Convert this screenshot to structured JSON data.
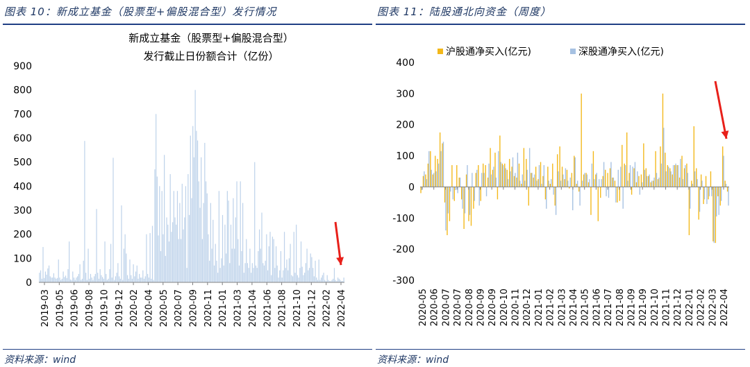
{
  "left_panel": {
    "figure_title": "图表 10：新成立基金（股票型+偏股混合型）发行情况",
    "source": "资料来源：wind"
  },
  "right_panel": {
    "figure_title": "图表 11：陆股通北向资金（周度）",
    "source": "资料来源：wind"
  },
  "colors": {
    "title_navy": "#1f3864",
    "rule_navy": "#1f3f84",
    "fund_bar": "#bdd2ea",
    "shanghai": "#f3b81a",
    "shenzhen": "#a6c1e2",
    "annotation_arrow": "#e8201a"
  },
  "chart_data": [
    {
      "type": "bar",
      "title": "新成立基金（股票型+偏股混合型）",
      "subtitle": "发行截止日份额合计（亿份）",
      "ylim": [
        0,
        900
      ],
      "yticks": [
        0,
        100,
        200,
        300,
        400,
        500,
        600,
        700,
        800,
        900
      ],
      "x_tick_labels": [
        "2019-03",
        "2019-05",
        "2019-06",
        "2019-08",
        "2019-10",
        "2019-12",
        "2020-02",
        "2020-04",
        "2020-05",
        "2020-07",
        "2020-09",
        "2020-11",
        "2021-01",
        "2021-03",
        "2021-04",
        "2021-06",
        "2021-08",
        "2021-10",
        "2021-12",
        "2022-02",
        "2022-04"
      ],
      "grid": false,
      "legend": "none",
      "annotation": "red arrow pointing to the latest bars (2022-04)",
      "values": [
        40,
        50,
        15,
        147,
        18,
        45,
        32,
        58,
        70,
        25,
        20,
        20,
        38,
        20,
        15,
        18,
        95,
        20,
        10,
        15,
        45,
        22,
        28,
        18,
        55,
        170,
        12,
        10,
        45,
        20,
        10,
        20,
        25,
        35,
        75,
        10,
        15,
        90,
        588,
        40,
        10,
        140,
        15,
        35,
        20,
        10,
        25,
        35,
        305,
        40,
        15,
        55,
        30,
        22,
        15,
        170,
        35,
        10,
        15,
        55,
        160,
        20,
        518,
        10,
        25,
        40,
        80,
        25,
        15,
        320,
        10,
        140,
        200,
        120,
        30,
        15,
        95,
        30,
        15,
        75,
        25,
        45,
        70,
        15,
        35,
        20,
        20,
        50,
        15,
        25,
        200,
        35,
        20,
        205,
        15,
        235,
        10,
        470,
        700,
        440,
        195,
        400,
        130,
        380,
        200,
        530,
        110,
        270,
        240,
        170,
        450,
        210,
        250,
        380,
        270,
        240,
        380,
        180,
        330,
        180,
        410,
        220,
        270,
        400,
        60,
        450,
        280,
        610,
        350,
        650,
        520,
        800,
        630,
        590,
        420,
        310,
        520,
        180,
        330,
        580,
        420,
        370,
        200,
        90,
        330,
        140,
        260,
        70,
        160,
        90,
        40,
        380,
        60,
        100,
        280,
        70,
        240,
        120,
        380,
        340,
        80,
        240,
        140,
        350,
        140,
        270,
        420,
        180,
        70,
        420,
        130,
        330,
        40,
        80,
        180,
        80,
        60,
        140,
        40,
        80,
        60,
        500,
        70,
        60,
        130,
        220,
        140,
        290,
        80,
        70,
        90,
        200,
        50,
        150,
        210,
        30,
        190,
        180,
        60,
        150,
        70,
        20,
        50,
        130,
        20,
        50,
        210,
        60,
        95,
        50,
        100,
        160,
        30,
        25,
        210,
        40,
        240,
        30,
        20,
        60,
        170,
        65,
        30,
        40,
        80,
        140,
        50,
        60,
        120,
        105,
        60,
        25,
        90,
        20,
        10,
        95,
        10,
        20,
        30,
        40,
        10,
        5,
        30,
        10,
        5,
        5,
        10,
        15,
        60,
        10,
        5,
        20,
        15,
        10,
        5,
        5,
        20
      ]
    },
    {
      "type": "bar",
      "ylim": [
        -300,
        400
      ],
      "yticks": [
        -300,
        -200,
        -100,
        0,
        100,
        200,
        300,
        400
      ],
      "x_tick_labels": [
        "2020-05",
        "2020-06",
        "2020-07",
        "2020-07",
        "2020-08",
        "2020-09",
        "2020-09",
        "2020-10",
        "2020-11",
        "2020-12",
        "2021-01",
        "2021-02",
        "2021-03",
        "2021-04",
        "2021-05",
        "2021-06",
        "2021-07",
        "2021-08",
        "2021-09",
        "2021-09",
        "2021-10",
        "2021-11",
        "2021-12",
        "2022-01",
        "2022-02",
        "2022-03",
        "2022-04"
      ],
      "grid": false,
      "legend": "top",
      "annotation": "red arrow pointing to the latest weeks (2022-04)",
      "series": [
        {
          "name": "沪股通净买入(亿元)",
          "values": [
            -20,
            35,
            40,
            75,
            115,
            40,
            100,
            90,
            175,
            140,
            -50,
            -155,
            -110,
            70,
            -45,
            70,
            30,
            -40,
            -135,
            40,
            -110,
            -125,
            -70,
            45,
            70,
            -45,
            75,
            70,
            30,
            125,
            55,
            110,
            -40,
            165,
            75,
            75,
            55,
            90,
            65,
            35,
            30,
            75,
            10,
            125,
            90,
            -60,
            45,
            30,
            65,
            25,
            80,
            35,
            -40,
            65,
            10,
            75,
            -60,
            105,
            130,
            65,
            25,
            55,
            -5,
            45,
            100,
            10,
            -15,
            300,
            40,
            45,
            15,
            -90,
            115,
            40,
            -110,
            -35,
            35,
            55,
            45,
            60,
            30,
            20,
            -50,
            -45,
            135,
            75,
            175,
            45,
            -25,
            60,
            15,
            35,
            40,
            140,
            60,
            35,
            15,
            20,
            115,
            25,
            130,
            300,
            110,
            70,
            60,
            40,
            70,
            70,
            30,
            100,
            60,
            75,
            -155,
            20,
            195,
            60,
            -105,
            40,
            -55,
            35,
            -40,
            50,
            -175,
            -180,
            -30,
            -60,
            130,
            20,
            -15
          ]
        },
        {
          "name": "深股通净买入(亿元)",
          "values": [
            -10,
            50,
            25,
            115,
            55,
            45,
            50,
            75,
            115,
            145,
            -140,
            -85,
            -15,
            -40,
            -10,
            -20,
            30,
            -70,
            -85,
            70,
            -90,
            45,
            -45,
            55,
            -60,
            45,
            45,
            -30,
            75,
            40,
            65,
            30,
            115,
            80,
            70,
            60,
            25,
            50,
            95,
            45,
            110,
            20,
            40,
            20,
            55,
            125,
            45,
            40,
            20,
            70,
            10,
            70,
            -70,
            20,
            25,
            -25,
            -90,
            50,
            20,
            40,
            60,
            20,
            30,
            -75,
            95,
            20,
            -60,
            20,
            45,
            40,
            25,
            75,
            25,
            45,
            25,
            25,
            80,
            -30,
            -35,
            80,
            30,
            -50,
            55,
            65,
            -70,
            70,
            20,
            70,
            65,
            80,
            50,
            -25,
            15,
            55,
            35,
            40,
            20,
            30,
            45,
            30,
            75,
            190,
            50,
            65,
            50,
            70,
            75,
            70,
            90,
            25,
            70,
            45,
            -70,
            10,
            50,
            25,
            -80,
            20,
            -40,
            -55,
            -30,
            -30,
            -180,
            -95,
            -90,
            -45,
            100,
            10,
            -60
          ]
        }
      ]
    }
  ]
}
